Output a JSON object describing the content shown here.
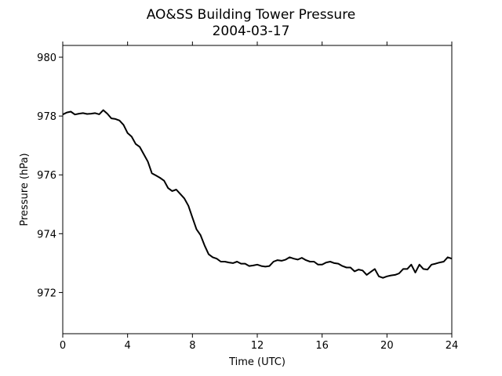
{
  "chart_data": {
    "type": "line",
    "title": "AO&SS Building Tower Pressure",
    "subtitle": "2004-03-17",
    "xlabel": "Time (UTC)",
    "ylabel": "Pressure (hPa)",
    "xlim": [
      0,
      24
    ],
    "ylim": [
      970.6,
      980.4
    ],
    "xticks": [
      0,
      4,
      8,
      12,
      16,
      20,
      24
    ],
    "yticks": [
      972,
      974,
      976,
      978,
      980
    ],
    "grid": false,
    "line_color": "#000000",
    "series": [
      {
        "x": [
          0,
          0.25,
          0.5,
          0.75,
          1.0,
          1.25,
          1.5,
          1.75,
          2.0,
          2.25,
          2.5,
          2.75,
          3.0,
          3.25,
          3.5,
          3.75,
          4.0,
          4.25,
          4.5,
          4.75,
          5.0,
          5.25,
          5.5,
          5.75,
          6.0,
          6.25,
          6.5,
          6.75,
          7.0,
          7.25,
          7.5,
          7.75,
          8.0,
          8.25,
          8.5,
          8.75,
          9.0,
          9.25,
          9.5,
          9.75,
          10.0,
          10.25,
          10.5,
          10.75,
          11.0,
          11.25,
          11.5,
          11.75,
          12.0,
          12.25,
          12.5,
          12.75,
          13.0,
          13.25,
          13.5,
          13.75,
          14.0,
          14.25,
          14.5,
          14.75,
          15.0,
          15.25,
          15.5,
          15.75,
          16.0,
          16.25,
          16.5,
          16.75,
          17.0,
          17.25,
          17.5,
          17.75,
          18.0,
          18.25,
          18.5,
          18.75,
          19.0,
          19.25,
          19.5,
          19.75,
          20.0,
          20.25,
          20.5,
          20.75,
          21.0,
          21.25,
          21.5,
          21.75,
          22.0,
          22.25,
          22.5,
          22.75,
          23.0,
          23.25,
          23.5,
          23.75,
          24.0
        ],
        "y": [
          978.05,
          978.12,
          978.15,
          978.05,
          978.08,
          978.1,
          978.07,
          978.08,
          978.1,
          978.06,
          978.2,
          978.08,
          977.92,
          977.9,
          977.85,
          977.7,
          977.42,
          977.3,
          977.05,
          976.95,
          976.7,
          976.45,
          976.05,
          975.98,
          975.9,
          975.8,
          975.55,
          975.45,
          975.5,
          975.35,
          975.2,
          974.95,
          974.55,
          974.15,
          973.95,
          973.6,
          973.3,
          973.2,
          973.15,
          973.05,
          973.05,
          973.02,
          973.0,
          973.05,
          972.98,
          972.98,
          972.9,
          972.92,
          972.95,
          972.9,
          972.88,
          972.9,
          973.05,
          973.1,
          973.08,
          973.12,
          973.2,
          973.15,
          973.12,
          973.18,
          973.1,
          973.05,
          973.05,
          972.95,
          972.95,
          973.02,
          973.05,
          973.0,
          972.98,
          972.9,
          972.85,
          972.85,
          972.72,
          972.78,
          972.75,
          972.6,
          972.7,
          972.8,
          972.55,
          972.5,
          972.55,
          972.58,
          972.6,
          972.65,
          972.8,
          972.8,
          972.95,
          972.68,
          972.95,
          972.8,
          972.78,
          972.95,
          972.98,
          973.02,
          973.05,
          973.2,
          973.15
        ]
      }
    ]
  }
}
